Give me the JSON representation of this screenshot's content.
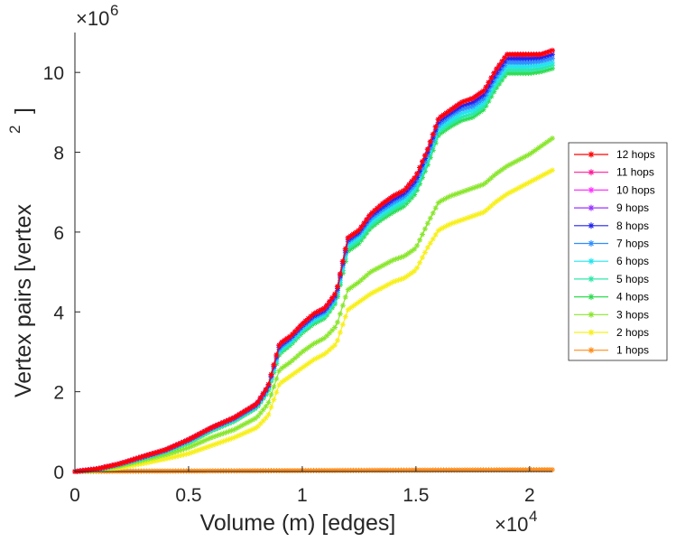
{
  "chart_data": {
    "type": "line",
    "xlabel": "Volume (m) [edges]",
    "ylabel": "Vertex pairs [vertex",
    "ylabel_sup": "2",
    "ylabel_close": "]",
    "x_exponent_base": "×10",
    "x_exponent_power": "4",
    "y_exponent_base": "×10",
    "y_exponent_power": "6",
    "x_multiplier": 10000,
    "y_multiplier": 1000000,
    "xlim": [
      0,
      2.1
    ],
    "ylim": [
      0,
      11
    ],
    "xticks": [
      0,
      0.5,
      1,
      1.5,
      2
    ],
    "xtick_labels": [
      "0",
      "0.5",
      "1",
      "1.5",
      "2"
    ],
    "yticks": [
      0,
      2,
      4,
      6,
      8,
      10
    ],
    "ytick_labels": [
      "0",
      "2",
      "4",
      "6",
      "8",
      "10"
    ],
    "legend_position": "right",
    "series": [
      {
        "name": "12 hops",
        "color": "#ff0000",
        "ref": 9
      },
      {
        "name": "11 hops",
        "color": "#ff1a9a",
        "ref": 9
      },
      {
        "name": "10 hops",
        "color": "#ff33ff",
        "ref": 9
      },
      {
        "name": "9 hops",
        "color": "#9933ff",
        "ref": 9
      },
      {
        "name": "8 hops",
        "color": "#2222ee",
        "ref": 8
      },
      {
        "name": "7 hops",
        "color": "#2f8fff",
        "ref": 7
      },
      {
        "name": "6 hops",
        "color": "#22e5ee",
        "ref": 6
      },
      {
        "name": "5 hops",
        "color": "#2ee8a8",
        "ref": 5
      },
      {
        "name": "4 hops",
        "color": "#2fdc4f",
        "ref": 4
      },
      {
        "name": "3 hops",
        "color": "#8ae62d",
        "ref": 3
      },
      {
        "name": "2 hops",
        "color": "#f7f01a",
        "ref": 2
      },
      {
        "name": "1 hops",
        "color": "#ff8c1a",
        "ref": 1
      }
    ],
    "curves": {
      "9": {
        "x": [
          0,
          0.1,
          0.2,
          0.3,
          0.4,
          0.5,
          0.6,
          0.7,
          0.8,
          0.85,
          0.9,
          0.95,
          1.0,
          1.05,
          1.1,
          1.15,
          1.2,
          1.25,
          1.3,
          1.35,
          1.4,
          1.45,
          1.5,
          1.55,
          1.6,
          1.65,
          1.7,
          1.75,
          1.8,
          1.85,
          1.9,
          1.95,
          2.0,
          2.05,
          2.1
        ],
        "y": [
          0,
          0.07,
          0.2,
          0.38,
          0.55,
          0.8,
          1.1,
          1.35,
          1.7,
          2.15,
          3.2,
          3.4,
          3.7,
          3.95,
          4.1,
          4.5,
          5.85,
          6.05,
          6.45,
          6.7,
          6.9,
          7.05,
          7.4,
          8.05,
          8.85,
          9.05,
          9.25,
          9.35,
          9.55,
          10.05,
          10.45,
          10.45,
          10.45,
          10.45,
          10.55
        ]
      },
      "8": {
        "x": [
          0,
          0.1,
          0.2,
          0.3,
          0.4,
          0.5,
          0.6,
          0.7,
          0.8,
          0.85,
          0.9,
          0.95,
          1.0,
          1.05,
          1.1,
          1.15,
          1.2,
          1.25,
          1.3,
          1.35,
          1.4,
          1.45,
          1.5,
          1.55,
          1.6,
          1.65,
          1.7,
          1.75,
          1.8,
          1.85,
          1.9,
          1.95,
          2.0,
          2.05,
          2.1
        ],
        "y": [
          0,
          0.07,
          0.2,
          0.37,
          0.54,
          0.79,
          1.09,
          1.34,
          1.68,
          2.12,
          3.15,
          3.36,
          3.66,
          3.9,
          4.05,
          4.45,
          5.8,
          6.0,
          6.4,
          6.62,
          6.82,
          6.98,
          7.3,
          7.98,
          8.77,
          8.98,
          9.16,
          9.25,
          9.45,
          9.95,
          10.35,
          10.35,
          10.35,
          10.37,
          10.45
        ]
      },
      "7": {
        "x": [
          0,
          0.1,
          0.2,
          0.3,
          0.4,
          0.5,
          0.6,
          0.7,
          0.8,
          0.85,
          0.9,
          0.95,
          1.0,
          1.05,
          1.1,
          1.15,
          1.2,
          1.25,
          1.3,
          1.35,
          1.4,
          1.45,
          1.5,
          1.55,
          1.6,
          1.65,
          1.7,
          1.75,
          1.8,
          1.85,
          1.9,
          1.95,
          2.0,
          2.05,
          2.1
        ],
        "y": [
          0,
          0.06,
          0.19,
          0.36,
          0.53,
          0.78,
          1.08,
          1.32,
          1.66,
          2.1,
          3.1,
          3.32,
          3.62,
          3.86,
          4.0,
          4.4,
          5.75,
          5.95,
          6.33,
          6.55,
          6.74,
          6.9,
          7.22,
          7.9,
          8.68,
          8.9,
          9.07,
          9.15,
          9.35,
          9.85,
          10.25,
          10.25,
          10.25,
          10.28,
          10.35
        ]
      },
      "6": {
        "x": [
          0,
          0.1,
          0.2,
          0.3,
          0.4,
          0.5,
          0.6,
          0.7,
          0.8,
          0.85,
          0.9,
          0.95,
          1.0,
          1.05,
          1.1,
          1.15,
          1.2,
          1.25,
          1.3,
          1.35,
          1.4,
          1.45,
          1.5,
          1.55,
          1.6,
          1.65,
          1.7,
          1.75,
          1.8,
          1.85,
          1.9,
          1.95,
          2.0,
          2.05,
          2.1
        ],
        "y": [
          0,
          0.06,
          0.19,
          0.35,
          0.52,
          0.76,
          1.06,
          1.3,
          1.64,
          2.07,
          3.05,
          3.27,
          3.57,
          3.8,
          3.95,
          4.35,
          5.68,
          5.88,
          6.25,
          6.47,
          6.66,
          6.82,
          7.14,
          7.82,
          8.6,
          8.8,
          8.97,
          9.05,
          9.25,
          9.75,
          10.15,
          10.15,
          10.15,
          10.18,
          10.25
        ]
      },
      "5": {
        "x": [
          0,
          0.1,
          0.2,
          0.3,
          0.4,
          0.5,
          0.6,
          0.7,
          0.8,
          0.85,
          0.9,
          0.95,
          1.0,
          1.05,
          1.1,
          1.15,
          1.2,
          1.25,
          1.3,
          1.35,
          1.4,
          1.45,
          1.5,
          1.55,
          1.6,
          1.65,
          1.7,
          1.75,
          1.8,
          1.85,
          1.9,
          1.95,
          2.0,
          2.05,
          2.1
        ],
        "y": [
          0,
          0.06,
          0.18,
          0.34,
          0.51,
          0.74,
          1.04,
          1.28,
          1.62,
          2.04,
          3.0,
          3.22,
          3.52,
          3.75,
          3.9,
          4.3,
          5.6,
          5.8,
          6.17,
          6.39,
          6.58,
          6.74,
          7.06,
          7.74,
          8.52,
          8.72,
          8.88,
          8.96,
          9.16,
          9.66,
          10.06,
          10.06,
          10.06,
          10.1,
          10.18
        ]
      },
      "4": {
        "x": [
          0,
          0.1,
          0.2,
          0.3,
          0.4,
          0.5,
          0.6,
          0.7,
          0.8,
          0.85,
          0.9,
          0.95,
          1.0,
          1.05,
          1.1,
          1.15,
          1.2,
          1.25,
          1.3,
          1.35,
          1.4,
          1.45,
          1.5,
          1.55,
          1.6,
          1.65,
          1.7,
          1.75,
          1.8,
          1.85,
          1.9,
          1.95,
          2.0,
          2.05,
          2.1
        ],
        "y": [
          0,
          0.05,
          0.17,
          0.33,
          0.5,
          0.72,
          1.02,
          1.26,
          1.6,
          2.01,
          2.95,
          3.18,
          3.48,
          3.7,
          3.85,
          4.25,
          5.52,
          5.72,
          6.1,
          6.32,
          6.5,
          6.66,
          6.98,
          7.66,
          8.44,
          8.64,
          8.8,
          8.88,
          9.08,
          9.58,
          9.98,
          9.98,
          9.98,
          10.02,
          10.1
        ]
      },
      "3": {
        "x": [
          0,
          0.1,
          0.2,
          0.3,
          0.4,
          0.5,
          0.6,
          0.7,
          0.8,
          0.85,
          0.9,
          0.95,
          1.0,
          1.05,
          1.1,
          1.15,
          1.2,
          1.25,
          1.3,
          1.35,
          1.4,
          1.45,
          1.5,
          1.55,
          1.6,
          1.65,
          1.7,
          1.75,
          1.8,
          1.85,
          1.9,
          1.95,
          2.0,
          2.05,
          2.1
        ],
        "y": [
          0,
          0.04,
          0.14,
          0.28,
          0.42,
          0.6,
          0.85,
          1.05,
          1.35,
          1.7,
          2.55,
          2.75,
          3.0,
          3.2,
          3.35,
          3.65,
          4.55,
          4.75,
          5.0,
          5.15,
          5.3,
          5.4,
          5.6,
          6.2,
          6.75,
          6.9,
          7.0,
          7.1,
          7.2,
          7.45,
          7.65,
          7.8,
          7.95,
          8.15,
          8.35
        ]
      },
      "2": {
        "x": [
          0,
          0.1,
          0.2,
          0.3,
          0.4,
          0.5,
          0.6,
          0.7,
          0.8,
          0.85,
          0.9,
          0.95,
          1.0,
          1.05,
          1.1,
          1.15,
          1.2,
          1.25,
          1.3,
          1.35,
          1.4,
          1.45,
          1.5,
          1.55,
          1.6,
          1.65,
          1.7,
          1.75,
          1.8,
          1.85,
          1.9,
          1.95,
          2.0,
          2.05,
          2.1
        ],
        "y": [
          0,
          0.03,
          0.1,
          0.2,
          0.32,
          0.45,
          0.65,
          0.85,
          1.1,
          1.4,
          2.2,
          2.4,
          2.6,
          2.8,
          2.95,
          3.2,
          4.05,
          4.25,
          4.45,
          4.6,
          4.75,
          4.85,
          5.05,
          5.6,
          6.05,
          6.2,
          6.3,
          6.4,
          6.5,
          6.75,
          6.95,
          7.1,
          7.25,
          7.4,
          7.55
        ]
      },
      "1": {
        "x": [
          0,
          0.1,
          0.2,
          0.3,
          0.4,
          0.5,
          0.6,
          0.7,
          0.8,
          0.9,
          1.0,
          1.1,
          1.2,
          1.3,
          1.4,
          1.5,
          1.6,
          1.7,
          1.8,
          1.9,
          2.0,
          2.1
        ],
        "y": [
          0,
          0.005,
          0.008,
          0.01,
          0.012,
          0.014,
          0.016,
          0.018,
          0.02,
          0.022,
          0.024,
          0.026,
          0.028,
          0.03,
          0.032,
          0.034,
          0.036,
          0.038,
          0.04,
          0.042,
          0.044,
          0.046
        ]
      }
    }
  }
}
